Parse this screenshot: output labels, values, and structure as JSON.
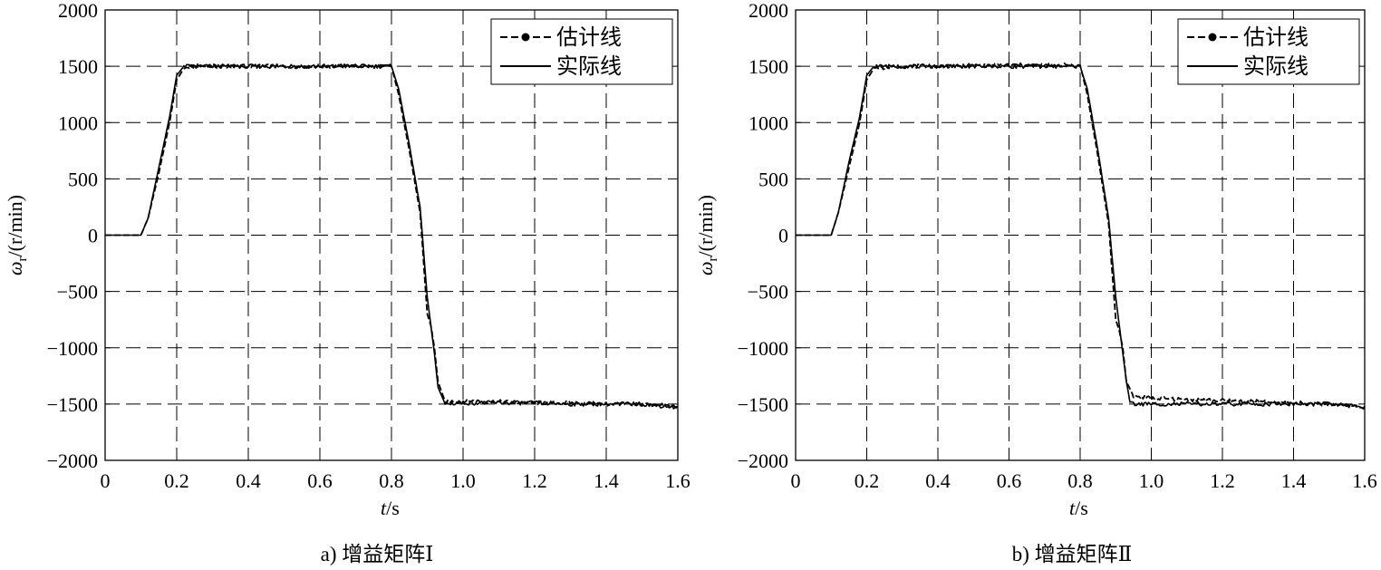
{
  "chart_data": [
    {
      "type": "line",
      "caption": "a) 增益矩阵Ⅰ",
      "xlabel_italic": "t",
      "xlabel_unit": "/s",
      "ylabel_symbol": "ω",
      "ylabel_subscript": "r",
      "ylabel_unit": "/(r/min)",
      "xlim": [
        0,
        1.6
      ],
      "ylim": [
        -2000,
        2000
      ],
      "xticks": [
        0,
        0.2,
        0.4,
        0.6,
        0.8,
        1.0,
        1.2,
        1.4,
        1.6
      ],
      "xtick_labels": [
        "0",
        "0.2",
        "0.4",
        "0.6",
        "0.8",
        "1.0",
        "1.2",
        "1.4",
        "1.6"
      ],
      "yticks": [
        2000,
        1500,
        1000,
        500,
        0,
        -500,
        -1000,
        -1500,
        -2000
      ],
      "ytick_labels": [
        "2000",
        "1500",
        "1000",
        "500",
        "0",
        "−500",
        "−1000",
        "−1500",
        "−2000"
      ],
      "grid": true,
      "legend_position": "top-right",
      "series": [
        {
          "name": "估计线",
          "style": "dashed-marker",
          "x": [
            0,
            0.1,
            0.12,
            0.15,
            0.18,
            0.2,
            0.22,
            0.25,
            0.3,
            0.4,
            0.5,
            0.6,
            0.7,
            0.8,
            0.82,
            0.85,
            0.88,
            0.9,
            0.91,
            0.92,
            0.93,
            0.95,
            1.0,
            1.1,
            1.2,
            1.3,
            1.4,
            1.5,
            1.6
          ],
          "y": [
            0,
            0,
            150,
            550,
            1000,
            1380,
            1480,
            1500,
            1500,
            1500,
            1500,
            1500,
            1500,
            1500,
            1250,
            750,
            200,
            -700,
            -800,
            -1000,
            -1300,
            -1480,
            -1470,
            -1480,
            -1490,
            -1490,
            -1500,
            -1500,
            -1520
          ]
        },
        {
          "name": "实际线",
          "style": "solid",
          "x": [
            0,
            0.1,
            0.12,
            0.15,
            0.18,
            0.2,
            0.22,
            0.25,
            0.3,
            0.4,
            0.5,
            0.6,
            0.7,
            0.8,
            0.82,
            0.85,
            0.88,
            0.9,
            0.92,
            0.93,
            0.95,
            1.0,
            1.1,
            1.2,
            1.3,
            1.4,
            1.5,
            1.6
          ],
          "y": [
            0,
            0,
            150,
            600,
            1050,
            1420,
            1500,
            1500,
            1500,
            1500,
            1500,
            1500,
            1500,
            1500,
            1300,
            800,
            250,
            -550,
            -1050,
            -1350,
            -1500,
            -1490,
            -1490,
            -1490,
            -1500,
            -1500,
            -1500,
            -1530
          ]
        }
      ]
    },
    {
      "type": "line",
      "caption": "b) 增益矩阵Ⅱ",
      "xlabel_italic": "t",
      "xlabel_unit": "/s",
      "ylabel_symbol": "ω",
      "ylabel_subscript": "r",
      "ylabel_unit": "/(r/min)",
      "xlim": [
        0,
        1.6
      ],
      "ylim": [
        -2000,
        2000
      ],
      "xticks": [
        0,
        0.2,
        0.4,
        0.6,
        0.8,
        1.0,
        1.2,
        1.4,
        1.6
      ],
      "xtick_labels": [
        "0",
        "0.2",
        "0.4",
        "0.6",
        "0.8",
        "1.0",
        "1.2",
        "1.4",
        "1.6"
      ],
      "yticks": [
        2000,
        1500,
        1000,
        500,
        0,
        -500,
        -1000,
        -1500,
        -2000
      ],
      "ytick_labels": [
        "2000",
        "1500",
        "1000",
        "500",
        "0",
        "−500",
        "−1000",
        "−1500",
        "−2000"
      ],
      "grid": true,
      "legend_position": "top-right",
      "series": [
        {
          "name": "估计线",
          "style": "dashed-marker",
          "x": [
            0,
            0.1,
            0.12,
            0.15,
            0.18,
            0.2,
            0.22,
            0.25,
            0.3,
            0.4,
            0.5,
            0.6,
            0.7,
            0.8,
            0.82,
            0.85,
            0.88,
            0.9,
            0.91,
            0.92,
            0.93,
            0.95,
            1.0,
            1.1,
            1.2,
            1.3,
            1.4,
            1.5,
            1.6
          ],
          "y": [
            0,
            0,
            200,
            600,
            1000,
            1380,
            1480,
            1490,
            1500,
            1500,
            1510,
            1510,
            1510,
            1510,
            1250,
            700,
            100,
            -750,
            -850,
            -1000,
            -1300,
            -1430,
            -1450,
            -1460,
            -1470,
            -1480,
            -1490,
            -1500,
            -1520
          ]
        },
        {
          "name": "实际线",
          "style": "solid",
          "x": [
            0,
            0.1,
            0.12,
            0.15,
            0.18,
            0.2,
            0.22,
            0.25,
            0.3,
            0.4,
            0.5,
            0.6,
            0.7,
            0.8,
            0.82,
            0.85,
            0.88,
            0.9,
            0.92,
            0.93,
            0.94,
            0.95,
            1.0,
            1.1,
            1.2,
            1.3,
            1.4,
            1.5,
            1.6
          ],
          "y": [
            0,
            0,
            200,
            650,
            1050,
            1420,
            1500,
            1500,
            1500,
            1500,
            1500,
            1500,
            1500,
            1500,
            1300,
            750,
            150,
            -550,
            -1050,
            -1300,
            -1480,
            -1500,
            -1500,
            -1500,
            -1500,
            -1500,
            -1500,
            -1500,
            -1530
          ]
        }
      ]
    }
  ]
}
